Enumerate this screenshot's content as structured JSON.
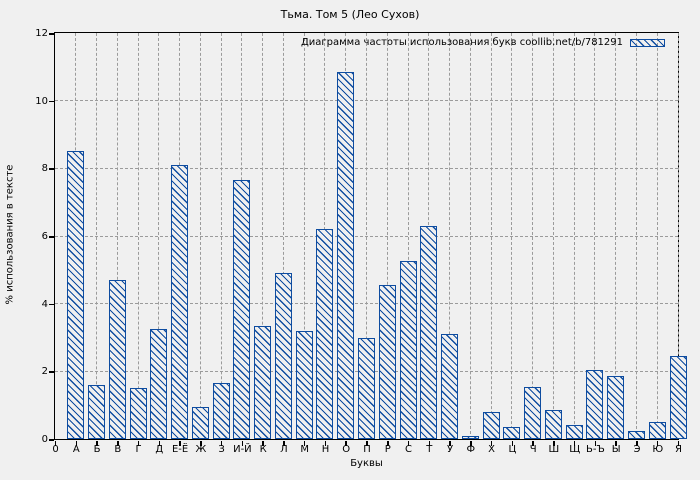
{
  "title": "Тьма. Том 5 (Лео Сухов)",
  "axes": {
    "xlabel": "Буквы",
    "ylabel": "% использования в тексте",
    "x_origin_label": "0"
  },
  "legend": {
    "label": "Диаграмма частоты использования букв coollib.net/b/781291"
  },
  "colors": {
    "background": "#f0f0f0",
    "bar": "#0e4ca0",
    "grid": "#9b9b9b",
    "axis": "#000000",
    "text": "#000000"
  },
  "chart_data": {
    "type": "bar",
    "title": "Тьма. Том 5 (Лео Сухов)",
    "xlabel": "Буквы",
    "ylabel": "% использования в тексте",
    "legend_entries": [
      "Диаграмма частоты использования букв coollib.net/b/781291"
    ],
    "legend_position": "top-right",
    "grid": true,
    "bar_style": "hatched-outline",
    "ylim": [
      0,
      12
    ],
    "yticks": [
      0,
      2,
      4,
      6,
      8,
      10,
      12
    ],
    "x_origin_label": "0",
    "categories": [
      "А",
      "Б",
      "В",
      "Г",
      "Д",
      "Е-Ё",
      "Ж",
      "З",
      "И-Й",
      "К",
      "Л",
      "М",
      "Н",
      "О",
      "П",
      "Р",
      "С",
      "Т",
      "У",
      "Ф",
      "Х",
      "Ц",
      "Ч",
      "Ш",
      "Щ",
      "Ь-Ъ",
      "Ы",
      "Э",
      "Ю",
      "Я"
    ],
    "values": [
      8.5,
      1.6,
      4.7,
      1.5,
      3.25,
      8.1,
      0.95,
      1.65,
      7.65,
      3.35,
      4.9,
      3.2,
      6.2,
      10.85,
      3.0,
      4.55,
      5.25,
      6.3,
      3.1,
      0.1,
      0.8,
      0.35,
      1.55,
      0.85,
      0.4,
      2.05,
      1.85,
      0.25,
      0.5,
      2.45
    ]
  }
}
